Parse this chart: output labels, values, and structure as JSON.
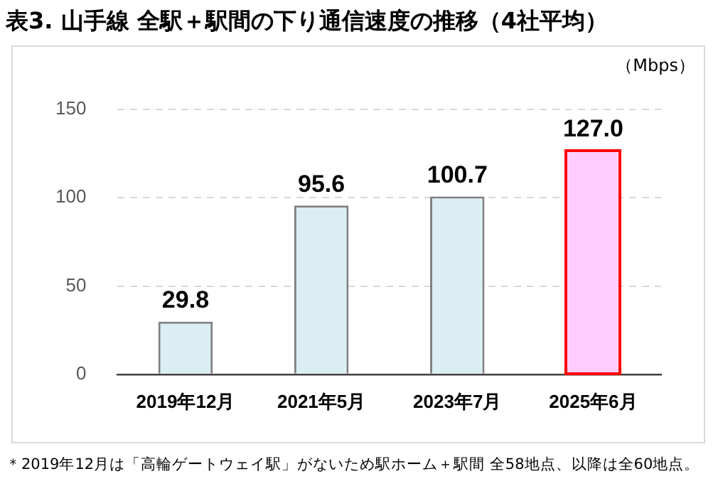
{
  "chart_data": {
    "type": "bar",
    "title": "表3. 山手線 全駅＋駅間の下り通信速度の推移（4社平均）",
    "ylabel": "（Mbps）",
    "categories": [
      "2019年12月",
      "2021年5月",
      "2023年7月",
      "2025年6月"
    ],
    "values": [
      29.8,
      95.6,
      100.7,
      127.0
    ],
    "value_labels": [
      "29.8",
      "95.6",
      "100.7",
      "127.0"
    ],
    "colors": [
      "#daeef3",
      "#daeef3",
      "#daeef3",
      "#ffccff"
    ],
    "ylim": [
      0,
      150
    ],
    "yticks": [
      0,
      50,
      100,
      150
    ],
    "grid": "y",
    "annotations": [
      "＊2019年12月は「高輪ゲートウェイ駅」がないため駅ホーム＋駅間 全58地点、以降は全60地点。"
    ]
  }
}
